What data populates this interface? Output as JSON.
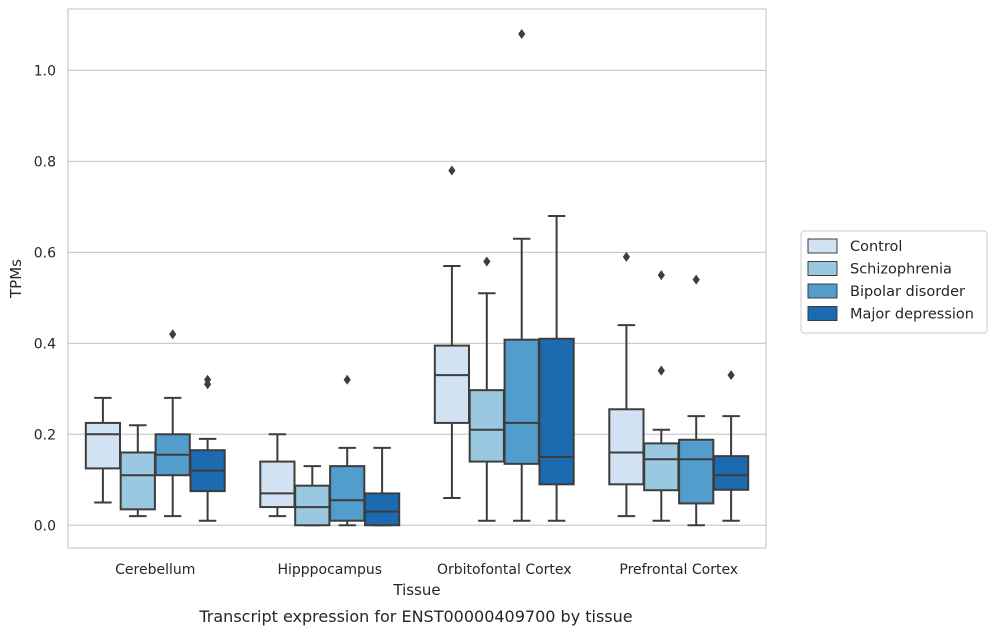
{
  "chart_data": {
    "type": "box",
    "caption": "Transcript expression for ENST00000409700 by tissue",
    "xlabel": "Tissue",
    "ylabel": "TPMs",
    "ylim": [
      -0.05,
      1.135
    ],
    "yticks": [
      "0.0",
      "0.2",
      "0.4",
      "0.6",
      "0.8",
      "1.0"
    ],
    "grid": "horizontal",
    "legend_position": "right",
    "categories": [
      "Cerebellum",
      "Hipppocampus",
      "Orbitofontal Cortex",
      "Prefrontal Cortex"
    ],
    "series": [
      {
        "name": "Control",
        "color": "#d1e2f2",
        "boxes": [
          {
            "whislo": 0.05,
            "q1": 0.125,
            "med": 0.2,
            "q3": 0.225,
            "whishi": 0.28,
            "fliers": []
          },
          {
            "whislo": 0.02,
            "q1": 0.04,
            "med": 0.07,
            "q3": 0.14,
            "whishi": 0.2,
            "fliers": []
          },
          {
            "whislo": 0.06,
            "q1": 0.225,
            "med": 0.33,
            "q3": 0.395,
            "whishi": 0.57,
            "fliers": [
              0.78
            ]
          },
          {
            "whislo": 0.02,
            "q1": 0.09,
            "med": 0.16,
            "q3": 0.255,
            "whishi": 0.44,
            "fliers": [
              0.59
            ]
          }
        ]
      },
      {
        "name": "Schizophrenia",
        "color": "#9ac8e0",
        "boxes": [
          {
            "whislo": 0.02,
            "q1": 0.035,
            "med": 0.11,
            "q3": 0.16,
            "whishi": 0.22,
            "fliers": []
          },
          {
            "whislo": 0.0,
            "q1": 0.0,
            "med": 0.04,
            "q3": 0.087,
            "whishi": 0.13,
            "fliers": []
          },
          {
            "whislo": 0.01,
            "q1": 0.14,
            "med": 0.21,
            "q3": 0.297,
            "whishi": 0.51,
            "fliers": [
              0.58
            ]
          },
          {
            "whislo": 0.01,
            "q1": 0.077,
            "med": 0.145,
            "q3": 0.18,
            "whishi": 0.21,
            "fliers": [
              0.34,
              0.55
            ]
          }
        ]
      },
      {
        "name": "Bipolar disorder",
        "color": "#529dcc",
        "boxes": [
          {
            "whislo": 0.02,
            "q1": 0.11,
            "med": 0.155,
            "q3": 0.2,
            "whishi": 0.28,
            "fliers": [
              0.42
            ]
          },
          {
            "whislo": 0.0,
            "q1": 0.01,
            "med": 0.055,
            "q3": 0.13,
            "whishi": 0.17,
            "fliers": [
              0.32
            ]
          },
          {
            "whislo": 0.01,
            "q1": 0.135,
            "med": 0.225,
            "q3": 0.408,
            "whishi": 0.63,
            "fliers": [
              1.08
            ]
          },
          {
            "whislo": 0.0,
            "q1": 0.048,
            "med": 0.145,
            "q3": 0.188,
            "whishi": 0.24,
            "fliers": [
              0.54
            ]
          }
        ]
      },
      {
        "name": "Major depression",
        "color": "#1c6aaf",
        "boxes": [
          {
            "whislo": 0.01,
            "q1": 0.075,
            "med": 0.12,
            "q3": 0.165,
            "whishi": 0.19,
            "fliers": [
              0.31,
              0.32
            ]
          },
          {
            "whislo": 0.0,
            "q1": 0.0,
            "med": 0.03,
            "q3": 0.07,
            "whishi": 0.17,
            "fliers": []
          },
          {
            "whislo": 0.01,
            "q1": 0.09,
            "med": 0.15,
            "q3": 0.41,
            "whishi": 0.68,
            "fliers": []
          },
          {
            "whislo": 0.01,
            "q1": 0.078,
            "med": 0.11,
            "q3": 0.152,
            "whishi": 0.24,
            "fliers": [
              0.33
            ]
          }
        ]
      }
    ]
  }
}
